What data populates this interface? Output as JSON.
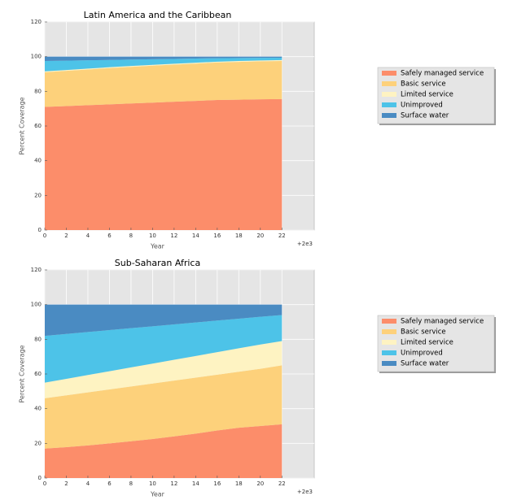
{
  "chart_data": [
    {
      "type": "area",
      "stacked": true,
      "title": "Latin America and the Caribbean",
      "xlabel": "Year",
      "ylabel": "Percent Coverage",
      "x_offset_label": "+2e3",
      "x": [
        0,
        2,
        4,
        6,
        8,
        10,
        12,
        14,
        16,
        18,
        20,
        22
      ],
      "series": [
        {
          "name": "Safely managed service",
          "color": "#fc8d6a",
          "values": [
            71,
            71.5,
            72,
            72.5,
            73,
            73.5,
            74,
            74.5,
            75,
            75.2,
            75.4,
            75.5
          ]
        },
        {
          "name": "Basic service",
          "color": "#fdd17b",
          "values": [
            20,
            20.3,
            20.6,
            20.9,
            21.1,
            21.3,
            21.4,
            21.5,
            21.6,
            21.8,
            21.9,
            22
          ]
        },
        {
          "name": "Limited service",
          "color": "#fef3c2",
          "values": [
            0.5,
            0.5,
            0.5,
            0.5,
            0.5,
            0.5,
            0.5,
            0.5,
            0.5,
            0.5,
            0.5,
            0.5
          ]
        },
        {
          "name": "Unimproved",
          "color": "#4dc3e8",
          "values": [
            6,
            5.4,
            4.8,
            4.2,
            3.7,
            3.2,
            2.8,
            2.4,
            2,
            1.7,
            1.5,
            1.4
          ]
        },
        {
          "name": "Surface water",
          "color": "#4a8bc2",
          "values": [
            2.5,
            2.3,
            2.1,
            1.9,
            1.7,
            1.5,
            1.3,
            1.1,
            0.9,
            0.8,
            0.7,
            0.6
          ]
        }
      ],
      "xlim": [
        0,
        25
      ],
      "ylim": [
        0,
        120
      ],
      "xticks": [
        0,
        2,
        4,
        6,
        8,
        10,
        12,
        14,
        16,
        18,
        20,
        22
      ],
      "yticks": [
        0,
        20,
        40,
        60,
        80,
        100,
        120
      ],
      "grid": true,
      "legend": "outside right"
    },
    {
      "type": "area",
      "stacked": true,
      "title": "Sub-Saharan Africa",
      "xlabel": "Year",
      "ylabel": "Percent Coverage",
      "x_offset_label": "+2e3",
      "x": [
        0,
        2,
        4,
        6,
        8,
        10,
        12,
        14,
        16,
        18,
        20,
        22
      ],
      "series": [
        {
          "name": "Safely managed service",
          "color": "#fc8d6a",
          "values": [
            17,
            17.8,
            18.8,
            20,
            21.2,
            22.5,
            24,
            25.6,
            27.4,
            29,
            30,
            31
          ]
        },
        {
          "name": "Basic service",
          "color": "#fdd17b",
          "values": [
            29,
            29.9,
            30.6,
            31.1,
            31.6,
            32,
            32.2,
            32.3,
            32.2,
            32.3,
            33,
            34
          ]
        },
        {
          "name": "Limited service",
          "color": "#fef3c2",
          "values": [
            9,
            9.5,
            10,
            10.5,
            11,
            11.5,
            12,
            12.5,
            13,
            13.5,
            14,
            14
          ]
        },
        {
          "name": "Unimproved",
          "color": "#4dc3e8",
          "values": [
            27,
            25.9,
            24.8,
            23.7,
            22.6,
            21.5,
            20.4,
            19.3,
            18.2,
            17.1,
            16,
            15
          ]
        },
        {
          "name": "Surface water",
          "color": "#4a8bc2",
          "values": [
            18,
            16.9,
            15.8,
            14.7,
            13.6,
            12.5,
            11.4,
            10.3,
            9.2,
            8.1,
            7,
            6
          ]
        }
      ],
      "xlim": [
        0,
        25
      ],
      "ylim": [
        0,
        120
      ],
      "xticks": [
        0,
        2,
        4,
        6,
        8,
        10,
        12,
        14,
        16,
        18,
        20,
        22
      ],
      "yticks": [
        0,
        20,
        40,
        60,
        80,
        100,
        120
      ],
      "grid": true,
      "legend": "outside right"
    }
  ]
}
